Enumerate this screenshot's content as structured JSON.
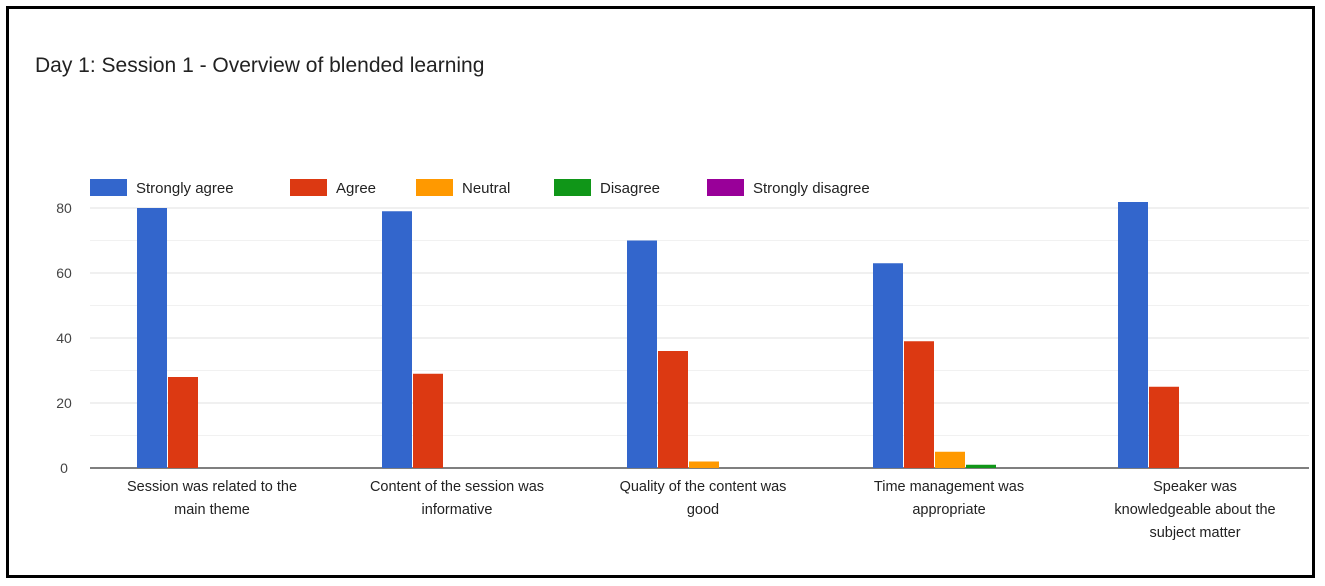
{
  "chart_data": {
    "type": "bar",
    "title": "Day 1: Session 1 - Overview of blended learning",
    "categories": [
      [
        "Session was related to the",
        "main theme"
      ],
      [
        "Content of the session was",
        "informative"
      ],
      [
        "Quality of the content was",
        "good"
      ],
      [
        "Time management was",
        "appropriate"
      ],
      [
        "Speaker was",
        "knowledgeable about the",
        "subject matter"
      ]
    ],
    "series": [
      {
        "name": "Strongly agree",
        "color": "#3366cc",
        "values": [
          80,
          79,
          70,
          63,
          83
        ]
      },
      {
        "name": "Agree",
        "color": "#dc3912",
        "values": [
          28,
          29,
          36,
          39,
          25
        ]
      },
      {
        "name": "Neutral",
        "color": "#ff9900",
        "values": [
          0,
          0,
          2,
          5,
          0
        ]
      },
      {
        "name": "Disagree",
        "color": "#109618",
        "values": [
          0,
          0,
          0,
          1,
          0
        ]
      },
      {
        "name": "Strongly disagree",
        "color": "#990099",
        "values": [
          0,
          0,
          0,
          0,
          0
        ]
      }
    ],
    "yticks": [
      0,
      20,
      40,
      60,
      80
    ],
    "ylim": [
      0,
      80
    ],
    "grid": true,
    "legend_position": "top-left"
  }
}
